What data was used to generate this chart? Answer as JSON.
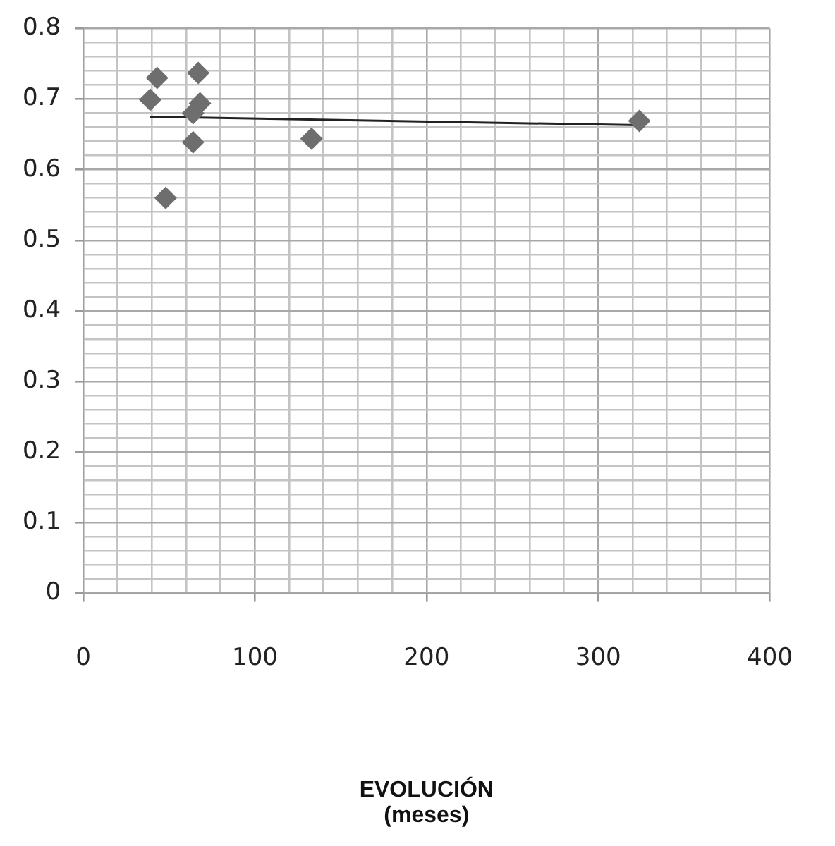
{
  "chart_data": {
    "type": "scatter",
    "xlabel": "EVOLUCIÓN\n(meses)",
    "xlim": [
      0,
      400
    ],
    "xticks": [
      0,
      {
        "value": 20,
        "label": null
      },
      {
        "value": 40,
        "label": null
      },
      {
        "value": 60,
        "label": null
      },
      {
        "value": 80,
        "label": null
      },
      100,
      {
        "value": 120,
        "label": null
      },
      {
        "value": 140,
        "label": null
      },
      {
        "value": 160,
        "label": null
      },
      {
        "value": 180,
        "label": null
      },
      200,
      {
        "value": 220,
        "label": null
      },
      {
        "value": 240,
        "label": null
      },
      {
        "value": 260,
        "label": null
      },
      {
        "value": 280,
        "label": null
      },
      300,
      {
        "value": 320,
        "label": null
      },
      {
        "value": 340,
        "label": null
      },
      {
        "value": 360,
        "label": null
      },
      {
        "value": 380,
        "label": null
      },
      400
    ],
    "ylim": [
      0,
      0.8
    ],
    "yticks": [
      0,
      {
        "value": 0.02,
        "label": null
      },
      {
        "value": 0.04,
        "label": null
      },
      {
        "value": 0.06,
        "label": null
      },
      {
        "value": 0.08,
        "label": null
      },
      0.1,
      {
        "value": 0.12,
        "label": null
      },
      {
        "value": 0.14,
        "label": null
      },
      {
        "value": 0.16,
        "label": null
      },
      {
        "value": 0.18,
        "label": null
      },
      0.2,
      {
        "value": 0.22,
        "label": null
      },
      {
        "value": 0.24,
        "label": null
      },
      {
        "value": 0.26,
        "label": null
      },
      {
        "value": 0.28,
        "label": null
      },
      0.3,
      {
        "value": 0.32,
        "label": null
      },
      {
        "value": 0.34,
        "label": null
      },
      {
        "value": 0.36,
        "label": null
      },
      {
        "value": 0.38,
        "label": null
      },
      0.4,
      {
        "value": 0.42,
        "label": null
      },
      {
        "value": 0.44,
        "label": null
      },
      {
        "value": 0.46,
        "label": null
      },
      {
        "value": 0.48,
        "label": null
      },
      0.5,
      {
        "value": 0.52,
        "label": null
      },
      {
        "value": 0.54,
        "label": null
      },
      {
        "value": 0.56,
        "label": null
      },
      {
        "value": 0.58,
        "label": null
      },
      0.6,
      {
        "value": 0.62,
        "label": null
      },
      {
        "value": 0.64,
        "label": null
      },
      {
        "value": 0.66,
        "label": null
      },
      {
        "value": 0.68,
        "label": null
      },
      0.7,
      {
        "value": 0.72,
        "label": null
      },
      {
        "value": 0.74,
        "label": null
      },
      {
        "value": 0.76,
        "label": null
      },
      {
        "value": 0.78,
        "label": null
      },
      0.8
    ],
    "grid": true,
    "legend": false,
    "marker": "diamond",
    "series": [
      {
        "color": "#6e6e6e",
        "x": [
          43,
          67,
          39,
          68,
          64,
          64,
          133,
          48,
          324
        ],
        "values": [
          0.73,
          0.737,
          0.699,
          0.694,
          0.68,
          0.639,
          0.644,
          0.56,
          0.669
        ]
      },
      {
        "type": "line",
        "color": "#222222",
        "marker": "none",
        "line_style": "solid",
        "x": [
          39,
          324
        ],
        "values": [
          0.675,
          0.663
        ]
      }
    ]
  }
}
